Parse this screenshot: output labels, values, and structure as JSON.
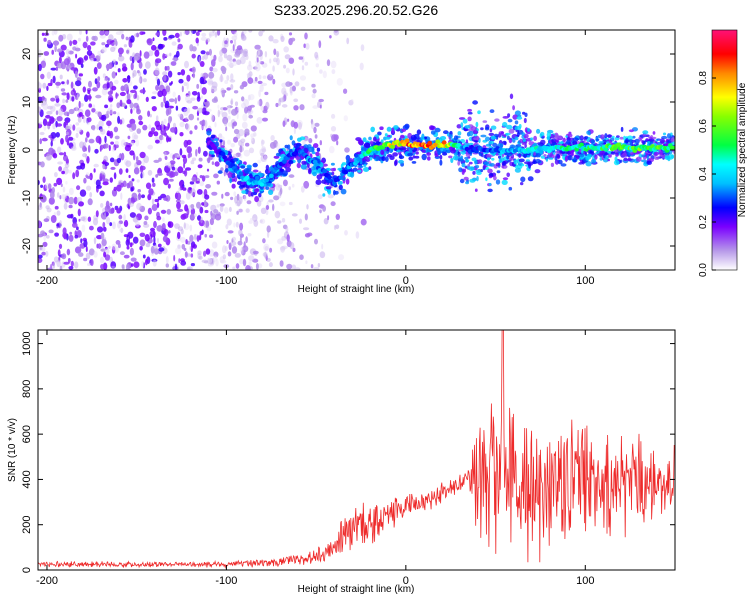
{
  "figure_title": "S233.2025.296.20.52.G26",
  "chart_data": [
    {
      "type": "heatmap",
      "name": "spectrogram",
      "xlabel": "Height of straight line (km)",
      "ylabel": "Frequency (Hz)",
      "xlim": [
        -205,
        150
      ],
      "ylim": [
        -25,
        25
      ],
      "xticks": [
        -200,
        -100,
        0,
        100
      ],
      "yticks": [
        -20,
        -10,
        0,
        10,
        20
      ],
      "colorbar": {
        "label": "Normalized spectral amplitude",
        "range": [
          0,
          1
        ],
        "ticks": [
          0.0,
          0.2,
          0.4,
          0.6,
          0.8
        ],
        "colormap": [
          "#ffffff",
          "#d9c6f2",
          "#8a2be2",
          "#0000ff",
          "#00e5ff",
          "#00ff33",
          "#ffff00",
          "#ff8800",
          "#ff0000",
          "#ff0066"
        ]
      },
      "ridge": {
        "description": "main signal ridge frequency vs height",
        "x": [
          -110,
          -100,
          -90,
          -80,
          -70,
          -60,
          -50,
          -40,
          -30,
          -20,
          -10,
          0,
          10,
          20,
          28,
          35,
          45,
          55,
          70,
          90,
          110,
          130,
          150
        ],
        "y": [
          2,
          -2,
          -6,
          -7,
          -3,
          0,
          -3,
          -7,
          -3,
          0,
          1,
          1.5,
          1,
          1,
          1,
          0,
          0,
          0,
          0,
          0.5,
          0.5,
          0.5,
          0.5
        ],
        "peak_amplitude": [
          0.2,
          0.3,
          0.4,
          0.4,
          0.3,
          0.3,
          0.35,
          0.3,
          0.35,
          0.55,
          0.7,
          0.85,
          0.9,
          0.85,
          0.5,
          0.3,
          0.3,
          0.4,
          0.45,
          0.5,
          0.55,
          0.6,
          0.6
        ]
      },
      "noise_region": {
        "x_range": [
          -205,
          -60
        ],
        "y_range": [
          -25,
          25
        ],
        "amplitude": 0.15
      }
    },
    {
      "type": "line",
      "name": "snr",
      "xlabel": "Height of straight line (km)",
      "ylabel": "SNR (10 * v/v)",
      "xlim": [
        -205,
        150
      ],
      "ylim": [
        0,
        1060
      ],
      "xticks": [
        -200,
        -100,
        0,
        100
      ],
      "yticks": [
        0,
        200,
        400,
        600,
        800,
        1000
      ],
      "color": "#ee2a2a",
      "envelope": {
        "x": [
          -205,
          -150,
          -100,
          -70,
          -50,
          -40,
          -35,
          -30,
          -20,
          -10,
          0,
          10,
          20,
          30,
          35,
          40,
          50,
          60,
          70,
          80,
          90,
          100,
          110,
          120,
          130,
          140,
          150
        ],
        "mean": [
          25,
          25,
          25,
          35,
          60,
          110,
          150,
          170,
          210,
          240,
          280,
          310,
          340,
          380,
          420,
          450,
          400,
          420,
          380,
          360,
          380,
          400,
          370,
          360,
          380,
          380,
          400
        ],
        "spread": [
          15,
          15,
          15,
          25,
          40,
          80,
          110,
          120,
          110,
          90,
          70,
          60,
          60,
          50,
          60,
          350,
          420,
          400,
          380,
          330,
          330,
          330,
          300,
          260,
          230,
          180,
          180
        ]
      },
      "peak": {
        "x": 54,
        "y": 1060
      }
    }
  ]
}
